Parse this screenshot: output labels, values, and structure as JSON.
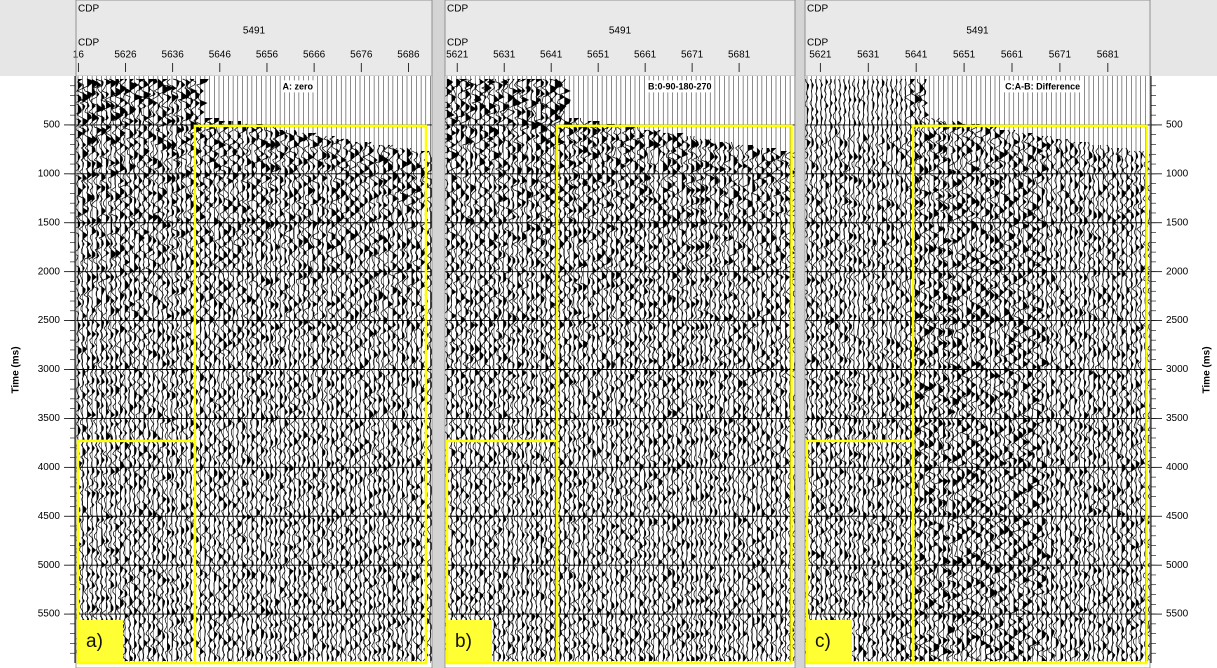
{
  "y_axis": {
    "label": "Time (ms)",
    "lim": [
      0,
      6000
    ],
    "ticks": [
      500,
      1000,
      1500,
      2000,
      2500,
      3000,
      3500,
      4000,
      4500,
      5000,
      5500
    ]
  },
  "panels": [
    {
      "header": {
        "top_label": "CDP",
        "center_label": "5491",
        "bottom_label": "CDP"
      },
      "title": "A: zero",
      "letter": "a)",
      "xlim": [
        5615.5,
        5691
      ],
      "xticks": [
        {
          "value": 5616,
          "label": "16"
        },
        5626,
        5636,
        5646,
        5656,
        5666,
        5676,
        5686
      ]
    },
    {
      "header": {
        "top_label": "CDP",
        "center_label": "5491",
        "bottom_label": "CDP"
      },
      "title": "B:0-90-180-270",
      "letter": "b)",
      "xlim": [
        5618.4,
        5692.9
      ],
      "xticks": [
        5621,
        5631,
        5641,
        5651,
        5661,
        5671,
        5681
      ]
    },
    {
      "header": {
        "top_label": "CDP",
        "center_label": "5491",
        "bottom_label": "CDP"
      },
      "title": "C:A-B: Difference",
      "letter": "c)",
      "xlim": [
        5617.8,
        5689.8
      ],
      "xticks": [
        5621,
        5631,
        5641,
        5651,
        5661,
        5671,
        5681
      ]
    }
  ]
}
